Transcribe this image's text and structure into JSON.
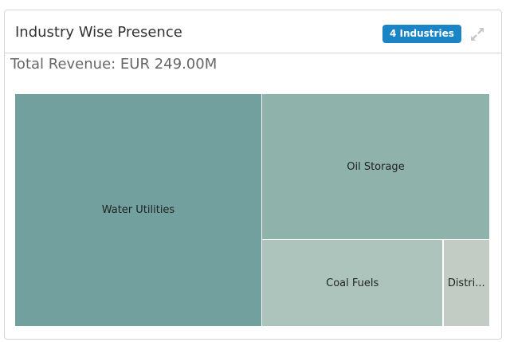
{
  "widget": {
    "title": "Industry Wise Presence",
    "badge": "4 Industries",
    "expand_icon": "expand-icon"
  },
  "chart_data": {
    "type": "treemap",
    "title": "Total Revenue: EUR 249.00M",
    "unit": "EUR M",
    "items": [
      {
        "label": "Water Utilities",
        "value": 129.5,
        "color": "#71a09e"
      },
      {
        "label": "Oil Storage",
        "value": 75.0,
        "color": "#8fb2ab"
      },
      {
        "label": "Coal Fuels",
        "value": 35.4,
        "color": "#adc4bc"
      },
      {
        "label": "Distri...",
        "value": 9.1,
        "color": "#c3ccc4"
      }
    ]
  }
}
